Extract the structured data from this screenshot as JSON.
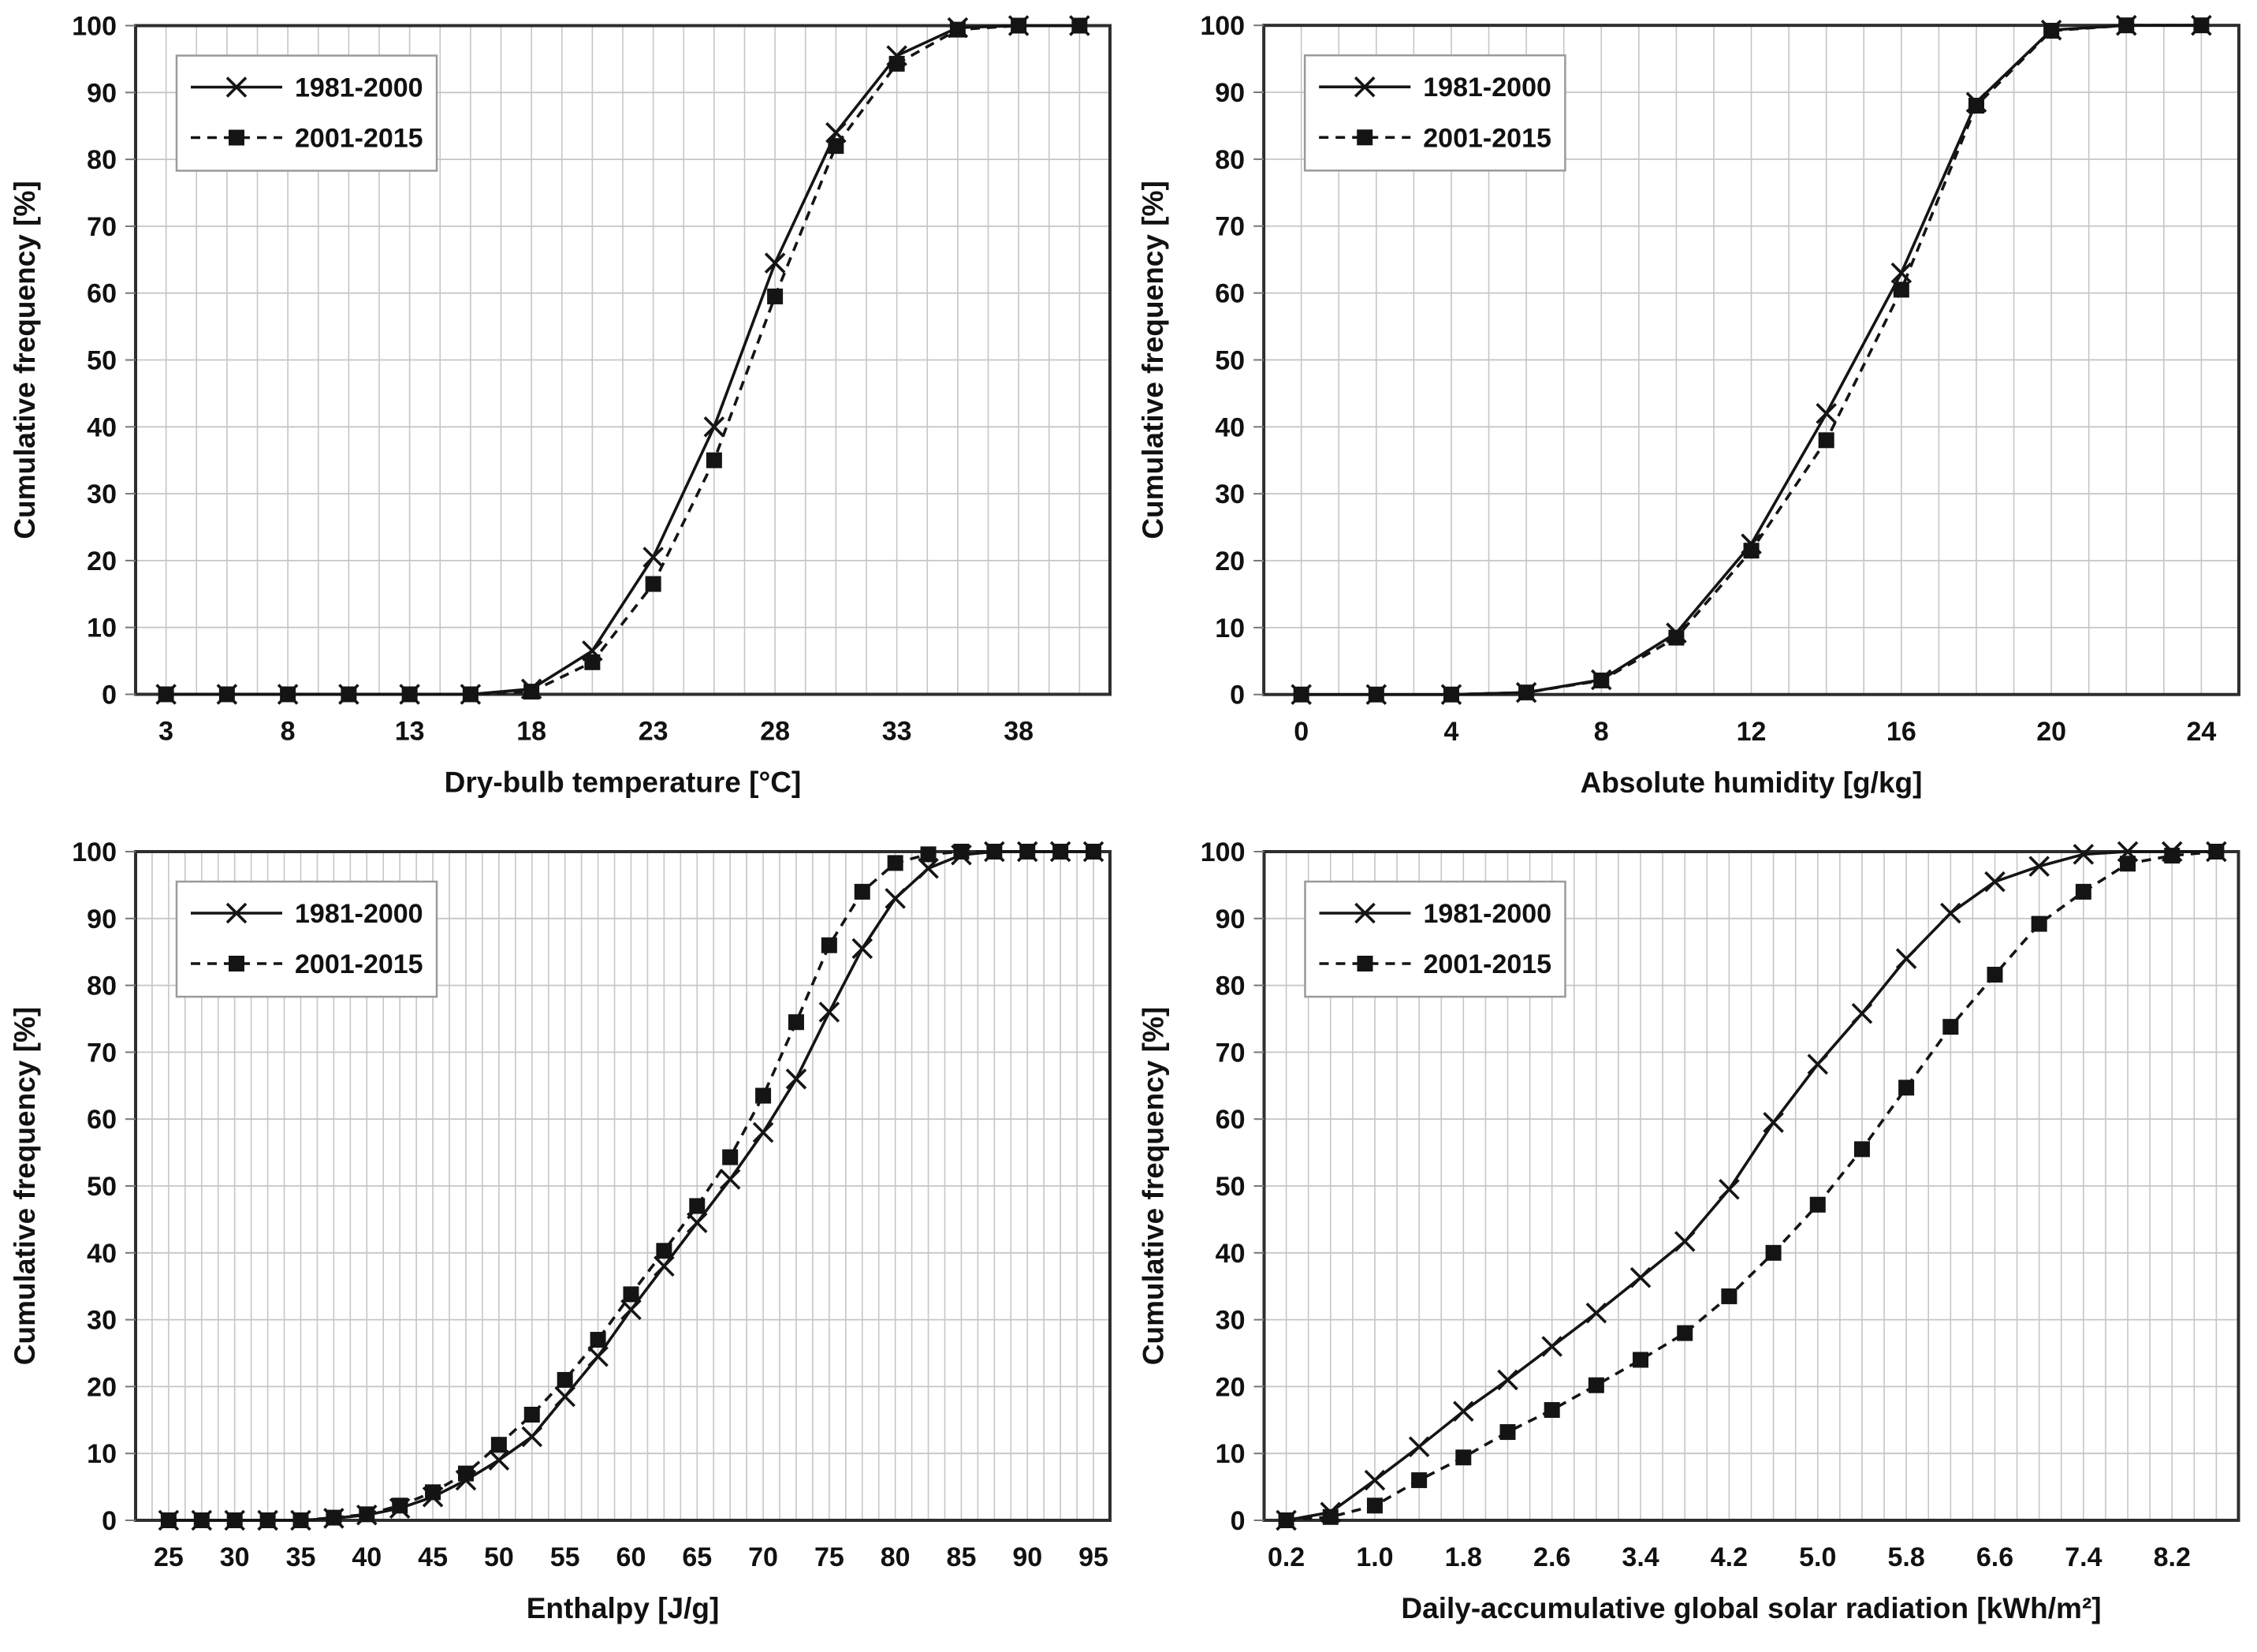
{
  "page": {
    "background": "#ffffff"
  },
  "styles": {
    "series_line_color": "#141414",
    "grid_color": "#c6c6c6",
    "plot_border_color": "#2e2e2e",
    "legend_border_color": "#9a9a9a",
    "tick_color": "#777777",
    "text_color": "#111111"
  },
  "legend": {
    "items": [
      {
        "label": "1981-2000",
        "marker": "x-marker",
        "line": "solid"
      },
      {
        "label": "2001-2015",
        "marker": "square-marker",
        "line": "dashed"
      }
    ]
  },
  "chart_data": [
    {
      "type": "line",
      "title": "",
      "xlabel": "Dry-bulb temperature [°C]",
      "ylabel": "Cumulative frequency [%]",
      "ylim": [
        0,
        100
      ],
      "xlim": [
        1.75,
        41.75
      ],
      "yticks": [
        0,
        10,
        20,
        30,
        40,
        50,
        60,
        70,
        80,
        90,
        100
      ],
      "xticks": [
        3,
        8,
        13,
        18,
        23,
        28,
        33,
        38
      ],
      "xtick_labels": [
        "3",
        "8",
        "13",
        "18",
        "23",
        "28",
        "33",
        "38"
      ],
      "minor_x_step": 1.25,
      "grid": true,
      "legend_position": "top-left",
      "x": [
        3,
        5.5,
        8,
        10.5,
        13,
        15.5,
        18,
        20.5,
        23,
        25.5,
        28,
        30.5,
        33,
        35.5,
        38,
        40.5
      ],
      "series": [
        {
          "name": "1981-2000",
          "line": "solid",
          "marker": "x",
          "values": [
            0,
            0,
            0,
            0,
            0,
            0,
            0.8,
            6.5,
            20.5,
            40,
            64.5,
            84,
            95.5,
            99.7,
            100,
            100
          ]
        },
        {
          "name": "2001-2015",
          "line": "dashed",
          "marker": "square",
          "values": [
            0,
            0,
            0,
            0,
            0,
            0,
            0.4,
            4.8,
            16.5,
            35,
            59.5,
            82,
            94.3,
            99.4,
            100,
            100
          ]
        }
      ]
    },
    {
      "type": "line",
      "title": "",
      "xlabel": "Absolute humidity [g/kg]",
      "ylabel": "Cumulative frequency [%]",
      "ylim": [
        0,
        100
      ],
      "xlim": [
        -1,
        25
      ],
      "yticks": [
        0,
        10,
        20,
        30,
        40,
        50,
        60,
        70,
        80,
        90,
        100
      ],
      "xticks": [
        0,
        4,
        8,
        12,
        16,
        20,
        24
      ],
      "xtick_labels": [
        "0",
        "4",
        "8",
        "12",
        "16",
        "20",
        "24"
      ],
      "minor_x_step": 1,
      "grid": true,
      "legend_position": "top-left",
      "x": [
        0,
        2,
        4,
        6,
        8,
        10,
        12,
        14,
        16,
        18,
        20,
        22,
        24
      ],
      "series": [
        {
          "name": "1981-2000",
          "line": "solid",
          "marker": "x",
          "values": [
            0,
            0,
            0,
            0.3,
            2.2,
            9.2,
            22.5,
            42,
            63,
            88.5,
            99.3,
            100,
            100
          ]
        },
        {
          "name": "2001-2015",
          "line": "dashed",
          "marker": "square",
          "values": [
            0,
            0,
            0,
            0.3,
            2.1,
            8.5,
            21.5,
            38,
            60.5,
            88,
            99.2,
            100,
            100
          ]
        }
      ]
    },
    {
      "type": "line",
      "title": "",
      "xlabel": "Enthalpy [J/g]",
      "ylabel": "Cumulative frequency [%]",
      "ylim": [
        0,
        100
      ],
      "xlim": [
        22.5,
        96.25
      ],
      "yticks": [
        0,
        10,
        20,
        30,
        40,
        50,
        60,
        70,
        80,
        90,
        100
      ],
      "xticks": [
        25,
        30,
        35,
        40,
        45,
        50,
        55,
        60,
        65,
        70,
        75,
        80,
        85,
        90,
        95
      ],
      "xtick_labels": [
        "25",
        "30",
        "35",
        "40",
        "45",
        "50",
        "55",
        "60",
        "65",
        "70",
        "75",
        "80",
        "85",
        "90",
        "95"
      ],
      "minor_x_step": 1.25,
      "grid": true,
      "legend_position": "top-left",
      "x": [
        25,
        27.5,
        30,
        32.5,
        35,
        37.5,
        40,
        42.5,
        45,
        47.5,
        50,
        52.5,
        55,
        57.5,
        60,
        62.5,
        65,
        67.5,
        70,
        72.5,
        75,
        77.5,
        80,
        82.5,
        85,
        87.5,
        90,
        92.5,
        95
      ],
      "series": [
        {
          "name": "1981-2000",
          "line": "solid",
          "marker": "x",
          "values": [
            0,
            0,
            0,
            0,
            0,
            0.3,
            0.8,
            1.8,
            3.5,
            6,
            9,
            12.5,
            18.5,
            24.5,
            31.5,
            38,
            44.5,
            51,
            58,
            66,
            76,
            85.5,
            93,
            97.5,
            99.5,
            100,
            100,
            100,
            100
          ]
        },
        {
          "name": "2001-2015",
          "line": "dashed",
          "marker": "square",
          "values": [
            0,
            0,
            0,
            0,
            0,
            0.4,
            0.9,
            2.2,
            4.2,
            7,
            11.3,
            15.8,
            21,
            27,
            33.8,
            40.3,
            47,
            54.3,
            63.5,
            74.5,
            86,
            94,
            98.3,
            99.6,
            100,
            100,
            100,
            100,
            100
          ]
        }
      ]
    },
    {
      "type": "line",
      "title": "",
      "xlabel": "Daily-accumulative global solar radiation [kWh/m²]",
      "ylabel": "Cumulative frequency [%]",
      "ylim": [
        0,
        100
      ],
      "xlim": [
        0,
        8.8
      ],
      "yticks": [
        0,
        10,
        20,
        30,
        40,
        50,
        60,
        70,
        80,
        90,
        100
      ],
      "xticks": [
        0.2,
        1.0,
        1.8,
        2.6,
        3.4,
        4.2,
        5.0,
        5.8,
        6.6,
        7.4,
        8.2
      ],
      "xtick_labels": [
        "0.2",
        "1.0",
        "1.8",
        "2.6",
        "3.4",
        "4.2",
        "5.0",
        "5.8",
        "6.6",
        "7.4",
        "8.2"
      ],
      "minor_x_step": 0.2,
      "grid": true,
      "legend_position": "top-left",
      "x": [
        0.2,
        0.6,
        1.0,
        1.4,
        1.8,
        2.2,
        2.6,
        3.0,
        3.4,
        3.8,
        4.2,
        4.6,
        5.0,
        5.4,
        5.8,
        6.2,
        6.6,
        7.0,
        7.4,
        7.8,
        8.2,
        8.6
      ],
      "series": [
        {
          "name": "1981-2000",
          "line": "solid",
          "marker": "x",
          "values": [
            0,
            1.2,
            6,
            11,
            16.3,
            21,
            26,
            31,
            36.3,
            41.7,
            49.5,
            59.5,
            68.2,
            75.8,
            84,
            90.8,
            95.5,
            97.8,
            99.6,
            100,
            100,
            100
          ]
        },
        {
          "name": "2001-2015",
          "line": "dashed",
          "marker": "square",
          "values": [
            0,
            0.5,
            2.2,
            6,
            9.4,
            13.2,
            16.5,
            20.2,
            24,
            28,
            33.5,
            40,
            47.2,
            55.5,
            64.7,
            73.8,
            81.6,
            89.2,
            94,
            98.2,
            99.4,
            100
          ]
        }
      ]
    }
  ]
}
